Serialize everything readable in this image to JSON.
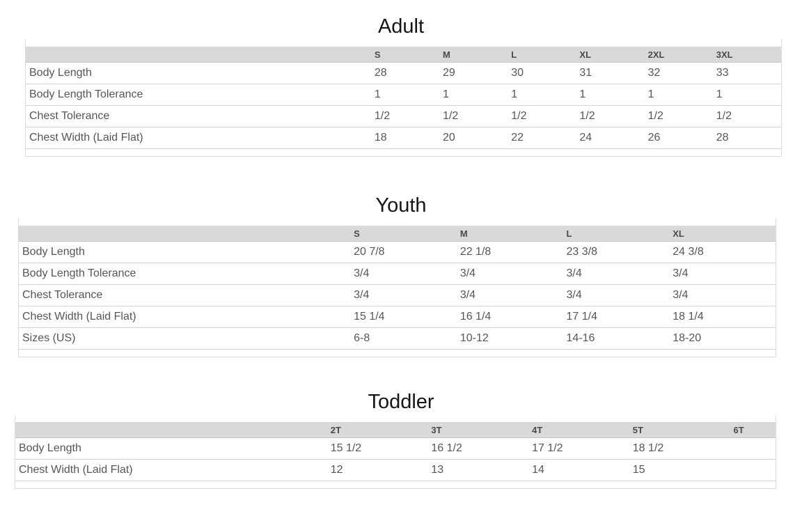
{
  "colors": {
    "page_background": "#ffffff",
    "header_row_background": "#d9d9d9",
    "header_text": "#4a4a4c",
    "cell_text": "#55565a",
    "row_separator": "#d2d2d2",
    "box_border": "#dddddd",
    "title_text": "#151515"
  },
  "chart_data": [
    {
      "type": "table",
      "title": "Adult",
      "columns": [
        "S",
        "M",
        "L",
        "XL",
        "2XL",
        "3XL"
      ],
      "rows": [
        {
          "label": "Body Length",
          "values": [
            "28",
            "29",
            "30",
            "31",
            "32",
            "33"
          ]
        },
        {
          "label": "Body Length Tolerance",
          "values": [
            "1",
            "1",
            "1",
            "1",
            "1",
            "1"
          ]
        },
        {
          "label": "Chest Tolerance",
          "values": [
            "1/2",
            "1/2",
            "1/2",
            "1/2",
            "1/2",
            "1/2"
          ]
        },
        {
          "label": "Chest Width (Laid Flat)",
          "values": [
            "18",
            "20",
            "22",
            "24",
            "26",
            "28"
          ]
        }
      ]
    },
    {
      "type": "table",
      "title": "Youth",
      "columns": [
        "S",
        "M",
        "L",
        "XL"
      ],
      "rows": [
        {
          "label": "Body Length",
          "values": [
            "20 7/8",
            "22 1/8",
            "23 3/8",
            "24 3/8"
          ]
        },
        {
          "label": "Body Length Tolerance",
          "values": [
            "3/4",
            "3/4",
            "3/4",
            "3/4"
          ]
        },
        {
          "label": "Chest Tolerance",
          "values": [
            "3/4",
            "3/4",
            "3/4",
            "3/4"
          ]
        },
        {
          "label": "Chest Width (Laid Flat)",
          "values": [
            "15 1/4",
            "16 1/4",
            "17 1/4",
            "18 1/4"
          ]
        },
        {
          "label": "Sizes (US)",
          "values": [
            "6-8",
            "10-12",
            "14-16",
            "18-20"
          ]
        }
      ]
    },
    {
      "type": "table",
      "title": "Toddler",
      "columns": [
        "2T",
        "3T",
        "4T",
        "5T",
        "6T"
      ],
      "rows": [
        {
          "label": "Body Length",
          "values": [
            "15 1/2",
            "16 1/2",
            "17 1/2",
            "18 1/2",
            ""
          ]
        },
        {
          "label": "Chest Width (Laid Flat)",
          "values": [
            "12",
            "13",
            "14",
            "15",
            ""
          ]
        }
      ]
    }
  ]
}
